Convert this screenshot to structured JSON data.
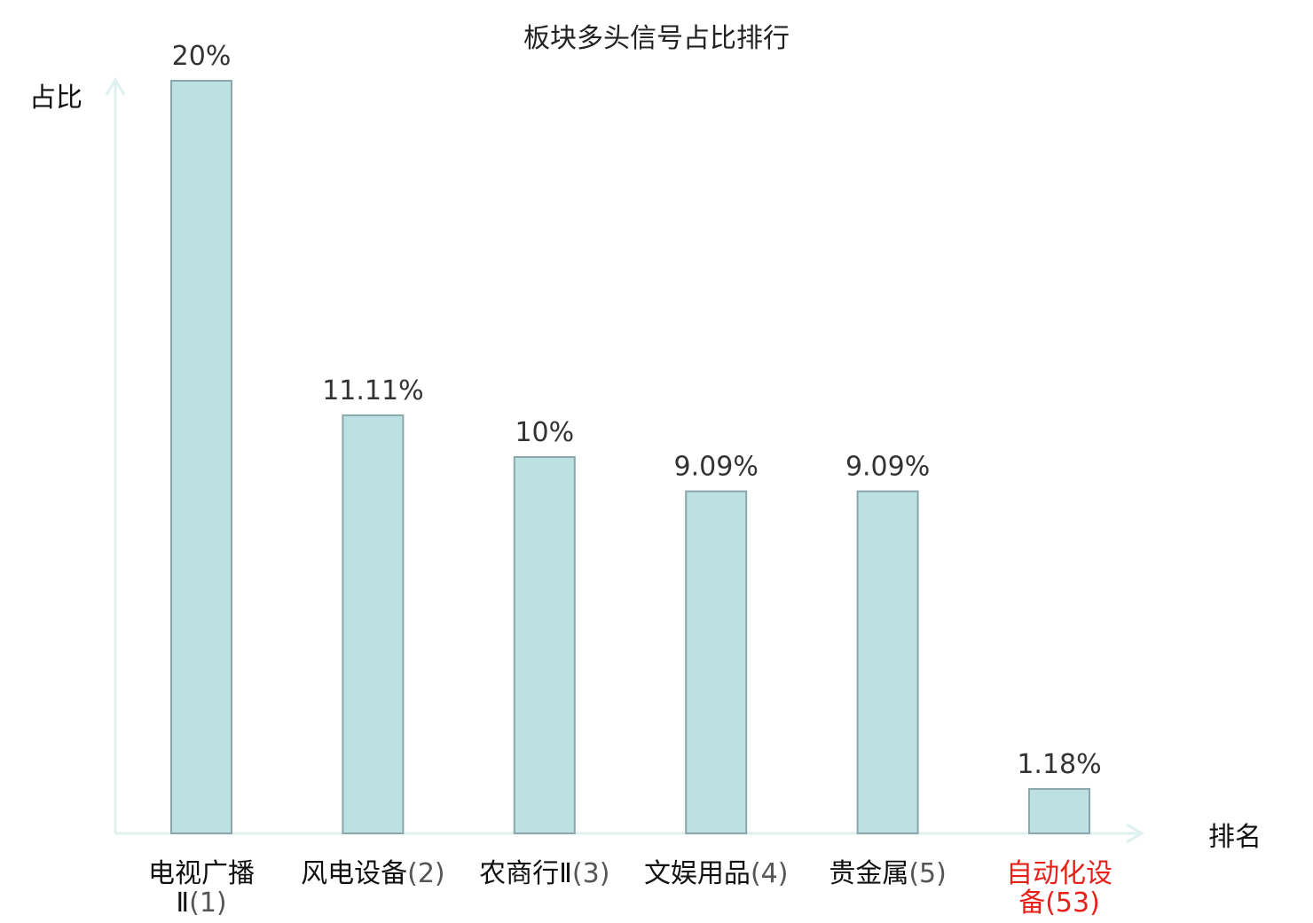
{
  "chart_data": {
    "type": "bar",
    "title": "板块多头信号占比排行",
    "xlabel": "排名",
    "ylabel": "占比",
    "categories": [
      {
        "name_lines": [
          "电视广播",
          "Ⅱ"
        ],
        "rank": "(1)",
        "highlight": false
      },
      {
        "name_lines": [
          "风电设备"
        ],
        "rank": "(2)",
        "highlight": false
      },
      {
        "name_lines": [
          "农商行Ⅱ"
        ],
        "rank": "(3)",
        "highlight": false
      },
      {
        "name_lines": [
          "文娱用品"
        ],
        "rank": "(4)",
        "highlight": false
      },
      {
        "name_lines": [
          "贵金属"
        ],
        "rank": "(5)",
        "highlight": false
      },
      {
        "name_lines": [
          "自动化设",
          "备"
        ],
        "rank": "(53)",
        "highlight": true
      }
    ],
    "values": [
      20,
      11.11,
      10,
      9.09,
      9.09,
      1.18
    ],
    "value_labels": [
      "20%",
      "11.11%",
      "10%",
      "9.09%",
      "9.09%",
      "1.18%"
    ],
    "ylim": [
      0,
      20
    ],
    "grid": false,
    "legend": "none"
  },
  "colors": {
    "bar_fill": "#bde0e3",
    "bar_stroke": "#8aa8ab",
    "axis": "#dff1ef",
    "text": "#111111",
    "value_text": "#333333",
    "highlight": "#e8201a"
  }
}
